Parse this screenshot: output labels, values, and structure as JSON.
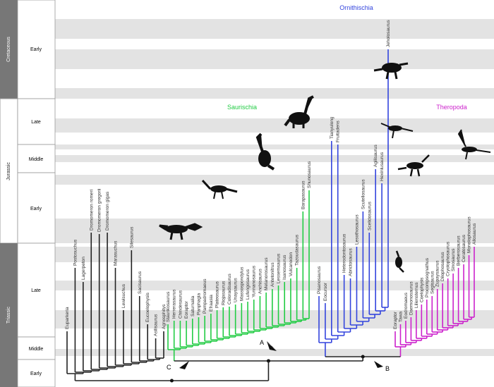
{
  "time_scale": {
    "periods": [
      {
        "name": "Cretaceous",
        "epochs": [
          "Early"
        ]
      },
      {
        "name": "Jurassic",
        "epochs": [
          "Late",
          "Middle",
          "Early"
        ]
      },
      {
        "name": "Triassic",
        "epochs": [
          "Late",
          "Middle",
          "Early"
        ]
      }
    ]
  },
  "clades": {
    "ornithischia": "Ornithischia",
    "saurischia": "Saurischia",
    "theropoda": "Theropoda"
  },
  "node_labels": {
    "a": "A",
    "b": "B",
    "c": "C"
  },
  "tree": {
    "groups": [
      {
        "taxa": [
          "Euparkeria",
          "Postosuchus",
          "Lagerpeton",
          "Dromomeron romeri",
          "Dromomeron gregorii",
          "Dromomeron gigas",
          "Marasuchus",
          "Lewisuchus",
          "Silesaurus",
          "Sacisaurus",
          "Eucoelophysis",
          "Asilisaurus",
          "Agnosphitys"
        ]
      },
      {
        "taxa": [
          "Staurikosaurus",
          "Herrerasaurus",
          "Chindesaurus",
          "Eoraptor",
          "Saturnalia",
          "Panphagia",
          "Pampadromaeus",
          "Efraasia",
          "Plateosaurus",
          "Riojasaurus",
          "Coloradisaurus",
          "Unaysaurus",
          "Massospondylus",
          "Lufengosaurus",
          "Yunnanosaurus",
          "Anchisaurus",
          "Melanorosaurus",
          "Antetonitrus",
          "Lessemsaurus",
          "Isanosaurus",
          "Vulcanodon",
          "Tazoudasaurus",
          "Barapasaurus",
          "Shunosaurus"
        ]
      },
      {
        "taxa": [
          "Pisanosaurus",
          "Eocursor",
          "Tianyulong",
          "Fruitadens",
          "Heterodontosaurus",
          "Abrictosaurus",
          "Lesothosaurus",
          "Scutellosaurus",
          "Scelidosaurus",
          "Agilisaurus",
          "Hexinlusaurus",
          "Jeholosaurus"
        ]
      },
      {
        "taxa": [
          "Eoraptor",
          "Tawa",
          "Eodromaeus",
          "Daemonosaurus",
          "Liliensternus",
          "Coelophysis",
          "Procompsognathus",
          "Segisaurus",
          "Zupaysaurus",
          "Dilophosaurus",
          "Cryolophosaurus",
          "Sinosaurus",
          "Berberosaurus",
          "Ceratosaurus",
          "Monolophosaurus",
          "Allosaurus"
        ]
      }
    ]
  }
}
